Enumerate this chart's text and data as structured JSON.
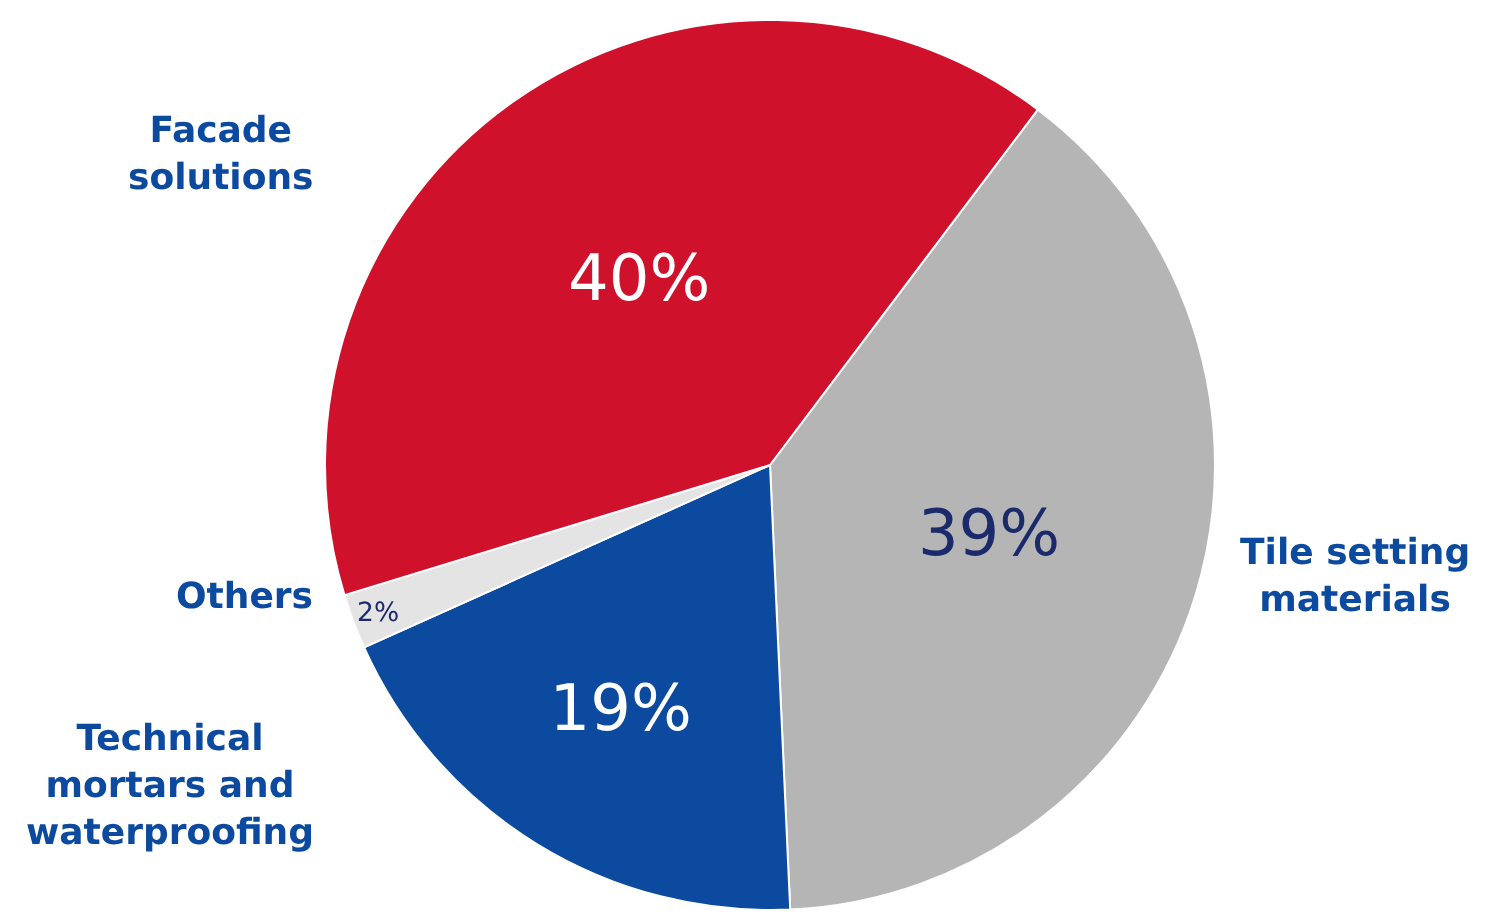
{
  "chart_data": {
    "type": "pie",
    "categories": [
      "Tile setting materials",
      "Technical mortars and waterproofing",
      "Others",
      "Facade solutions"
    ],
    "values": [
      39,
      19,
      2,
      40
    ],
    "colors": [
      "#b5b5b5",
      "#0b4a9f",
      "#e4e4e4",
      "#d0112b"
    ],
    "value_labels": [
      "39%",
      "19%",
      "2%",
      "40%"
    ],
    "legend": false
  }
}
